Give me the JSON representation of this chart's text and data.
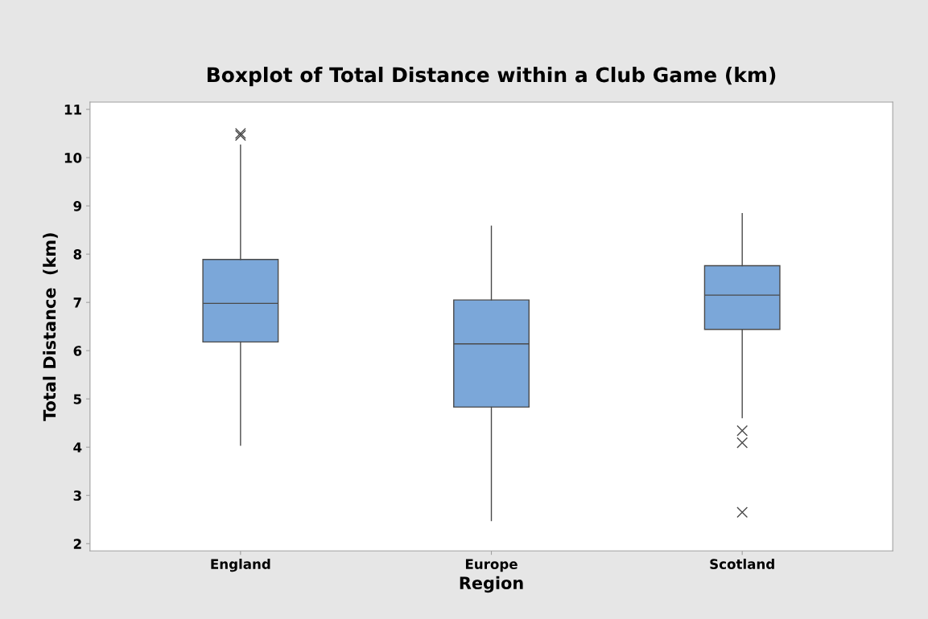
{
  "chart_data": {
    "type": "box",
    "title": "Boxplot of Total Distance within a Club Game (km)",
    "xlabel": "Region",
    "ylabel": "Total Distance  (km)",
    "categories": [
      "England",
      "Europe",
      "Scotland"
    ],
    "boxes": [
      {
        "low": 4.04,
        "q1": 6.18,
        "median": 6.98,
        "q3": 7.89,
        "high": 10.26,
        "outliers": [
          10.5,
          10.46
        ]
      },
      {
        "low": 2.48,
        "q1": 4.83,
        "median": 6.14,
        "q3": 7.05,
        "high": 8.58
      },
      {
        "low": 4.61,
        "q1": 6.44,
        "median": 7.15,
        "q3": 7.76,
        "high": 8.84,
        "outliers": [
          4.34,
          4.09,
          2.65
        ]
      }
    ],
    "color": "#7ba7d9",
    "ylim": [
      1.85,
      11.15
    ],
    "yticks": [
      2,
      3,
      4,
      5,
      6,
      7,
      8,
      9,
      10,
      11
    ],
    "grid": false,
    "marker": "cross"
  }
}
